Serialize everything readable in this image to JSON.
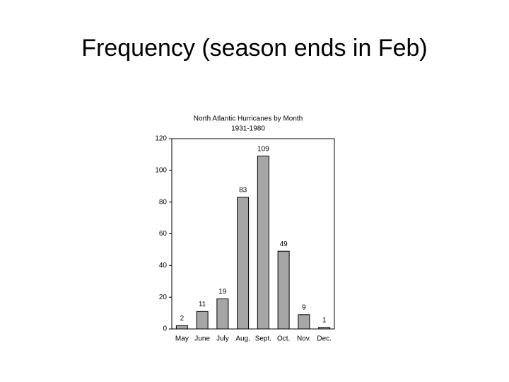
{
  "slide_title": "Frequency  (season ends in Feb)",
  "chart_data": {
    "type": "bar",
    "title": "North Atlantic Hurricanes by Month",
    "subtitle": "1931-1980",
    "categories": [
      "May",
      "June",
      "July",
      "Aug.",
      "Sept.",
      "Oct.",
      "Nov.",
      "Dec."
    ],
    "values": [
      2,
      11,
      19,
      83,
      109,
      49,
      9,
      1
    ],
    "color": "#a6a6a6",
    "ylim": [
      0,
      120
    ],
    "yticks": [
      0,
      20,
      40,
      60,
      80,
      100,
      120
    ],
    "grid": false
  }
}
